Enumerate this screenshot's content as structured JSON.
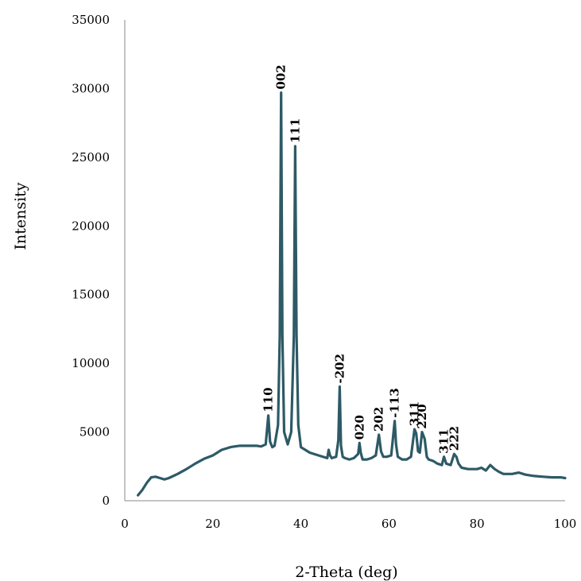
{
  "chart_data": {
    "type": "line",
    "title": "",
    "xlabel": "2-Theta (deg)",
    "ylabel": "Intensity",
    "xlim": [
      0,
      100
    ],
    "ylim": [
      0,
      35000
    ],
    "xticks": [
      "0",
      "20",
      "40",
      "60",
      "80",
      "100"
    ],
    "yticks": [
      "0",
      "5000",
      "10000",
      "15000",
      "20000",
      "25000",
      "30000",
      "35000"
    ],
    "grid": false,
    "legend": "none",
    "series_color": "#2d5a66",
    "series": [
      {
        "x": [
          3,
          4,
          5,
          6,
          7,
          8,
          9,
          10,
          12,
          14,
          16,
          18,
          20,
          22,
          24,
          25,
          26,
          28,
          30,
          31,
          32,
          32.6,
          33,
          33.5,
          34,
          34.8,
          35.2,
          35.5,
          35.8,
          36.2,
          37,
          37.8,
          38.4,
          38.7,
          39,
          39.4,
          40,
          41,
          42,
          44,
          46,
          46.3,
          46.6,
          47,
          48,
          48.5,
          48.8,
          49.1,
          49.5,
          50,
          51,
          52,
          53,
          53.3,
          53.6,
          54,
          55,
          56,
          57,
          57.7,
          58.2,
          58.7,
          59.5,
          60.5,
          61.3,
          61.6,
          62,
          63,
          64,
          65,
          65.8,
          66.2,
          66.6,
          67,
          67.5,
          68.1,
          68.6,
          69,
          70,
          71,
          72,
          72.5,
          73,
          74,
          74.8,
          75.3,
          75.8,
          76.5,
          78,
          80,
          81,
          82,
          83,
          84,
          85,
          86,
          88,
          89.5,
          91,
          93,
          95,
          97,
          99,
          100
        ],
        "y": [
          400,
          800,
          1300,
          1700,
          1750,
          1650,
          1550,
          1650,
          1950,
          2300,
          2700,
          3050,
          3300,
          3700,
          3900,
          3950,
          4000,
          4000,
          4000,
          3950,
          4100,
          6200,
          4300,
          3900,
          4000,
          5500,
          12000,
          29700,
          12000,
          5000,
          4100,
          5000,
          12000,
          25800,
          12000,
          5500,
          3900,
          3700,
          3500,
          3300,
          3100,
          3700,
          3300,
          3100,
          3200,
          4400,
          8300,
          4000,
          3200,
          3100,
          3000,
          3100,
          3400,
          4200,
          3500,
          3000,
          3000,
          3100,
          3300,
          4800,
          3600,
          3200,
          3200,
          3300,
          5800,
          4100,
          3200,
          3000,
          3000,
          3200,
          5200,
          4900,
          3600,
          3500,
          5000,
          4500,
          3200,
          3000,
          2900,
          2700,
          2600,
          3200,
          2700,
          2600,
          3400,
          3200,
          2700,
          2400,
          2300,
          2300,
          2400,
          2200,
          2600,
          2300,
          2100,
          1950,
          1950,
          2050,
          1900,
          1800,
          1750,
          1700,
          1700,
          1650
        ]
      }
    ],
    "annotations": [
      {
        "text": "110",
        "x": 32.6,
        "y": 6200
      },
      {
        "text": "002",
        "x": 35.5,
        "y": 29700
      },
      {
        "text": "111",
        "x": 38.7,
        "y": 25800
      },
      {
        "text": "-202",
        "x": 48.8,
        "y": 8300
      },
      {
        "text": "020",
        "x": 53.3,
        "y": 4200
      },
      {
        "text": "202",
        "x": 57.7,
        "y": 4800
      },
      {
        "text": "-113",
        "x": 61.3,
        "y": 5800
      },
      {
        "text": "311",
        "x": 65.8,
        "y": 5200
      },
      {
        "text": "220",
        "x": 67.5,
        "y": 5000
      },
      {
        "text": "311",
        "x": 72.5,
        "y": 3200
      },
      {
        "text": "222",
        "x": 74.8,
        "y": 3400
      }
    ]
  }
}
